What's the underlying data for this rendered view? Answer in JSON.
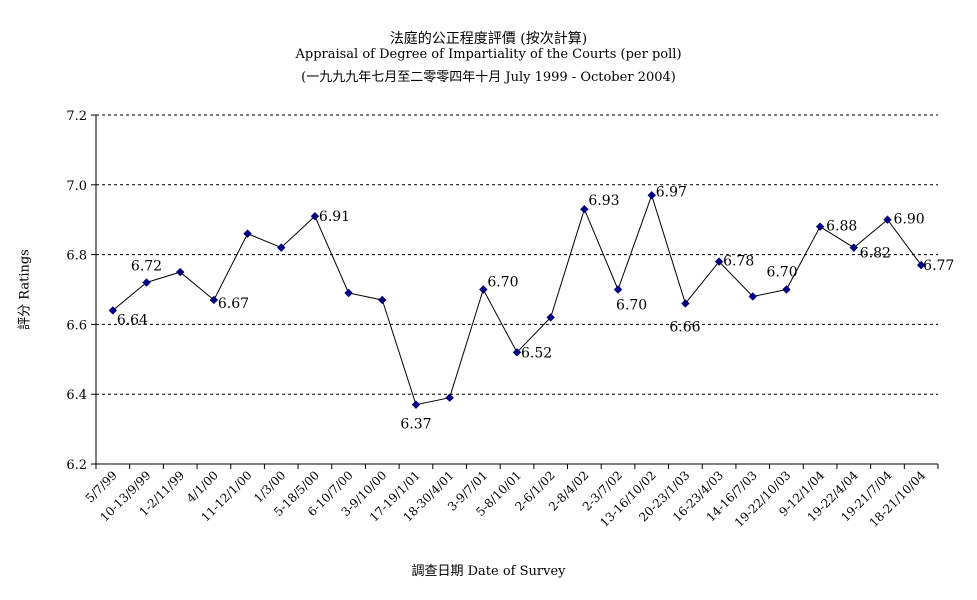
{
  "chart_data": {
    "type": "line",
    "title": "法庭的公正程度評價 (按次計算)",
    "subtitle": "Appraisal of Degree of Impartiality of the Courts (per poll)",
    "period": "(一九九九年七月至二零零四年十月 July 1999 - October 2004)",
    "xlabel": "調查日期 Date of Survey",
    "ylabel": "評分 Ratings",
    "ylim": [
      6.2,
      7.2
    ],
    "yticks": [
      "6.2",
      "6.4",
      "6.6",
      "6.8",
      "7.0",
      "7.2"
    ],
    "grid": true,
    "x": [
      "5/7/99",
      "10-13/9/99",
      "1-2/11/99",
      "4/1/00",
      "11-12/1/00",
      "1/3/00",
      "5-18/5/00",
      "6-10/7/00",
      "3-9/10/00",
      "17-19/1/01",
      "18-30/4/01",
      "3-9/7/01",
      "5-8/10/01",
      "2-6/1/02",
      "2-8/4/02",
      "2-3/7/02",
      "13-16/10/02",
      "20-23/1/03",
      "16-23/4/03",
      "14-16/7/03",
      "19-22/10/03",
      "9-12/1/04",
      "19-22/4/04",
      "19-21/7/04",
      "18-21/10/04"
    ],
    "values": [
      6.64,
      6.72,
      6.75,
      6.67,
      6.86,
      6.82,
      6.91,
      6.69,
      6.67,
      6.37,
      6.39,
      6.7,
      6.52,
      6.62,
      6.93,
      6.7,
      6.97,
      6.66,
      6.78,
      6.68,
      6.7,
      6.88,
      6.82,
      6.9,
      6.77
    ],
    "labels": [
      "6.64",
      "6.72",
      "",
      "6.67",
      "",
      "",
      "6.91",
      "",
      "",
      "6.37",
      "",
      "6.70",
      "6.52",
      "",
      "6.93",
      "6.70",
      "6.97",
      "6.66",
      "6.78",
      "",
      "6.70",
      "6.88",
      "6.82",
      "6.90",
      "6.77"
    ],
    "series_color": "#000080",
    "line_color": "#000000"
  }
}
